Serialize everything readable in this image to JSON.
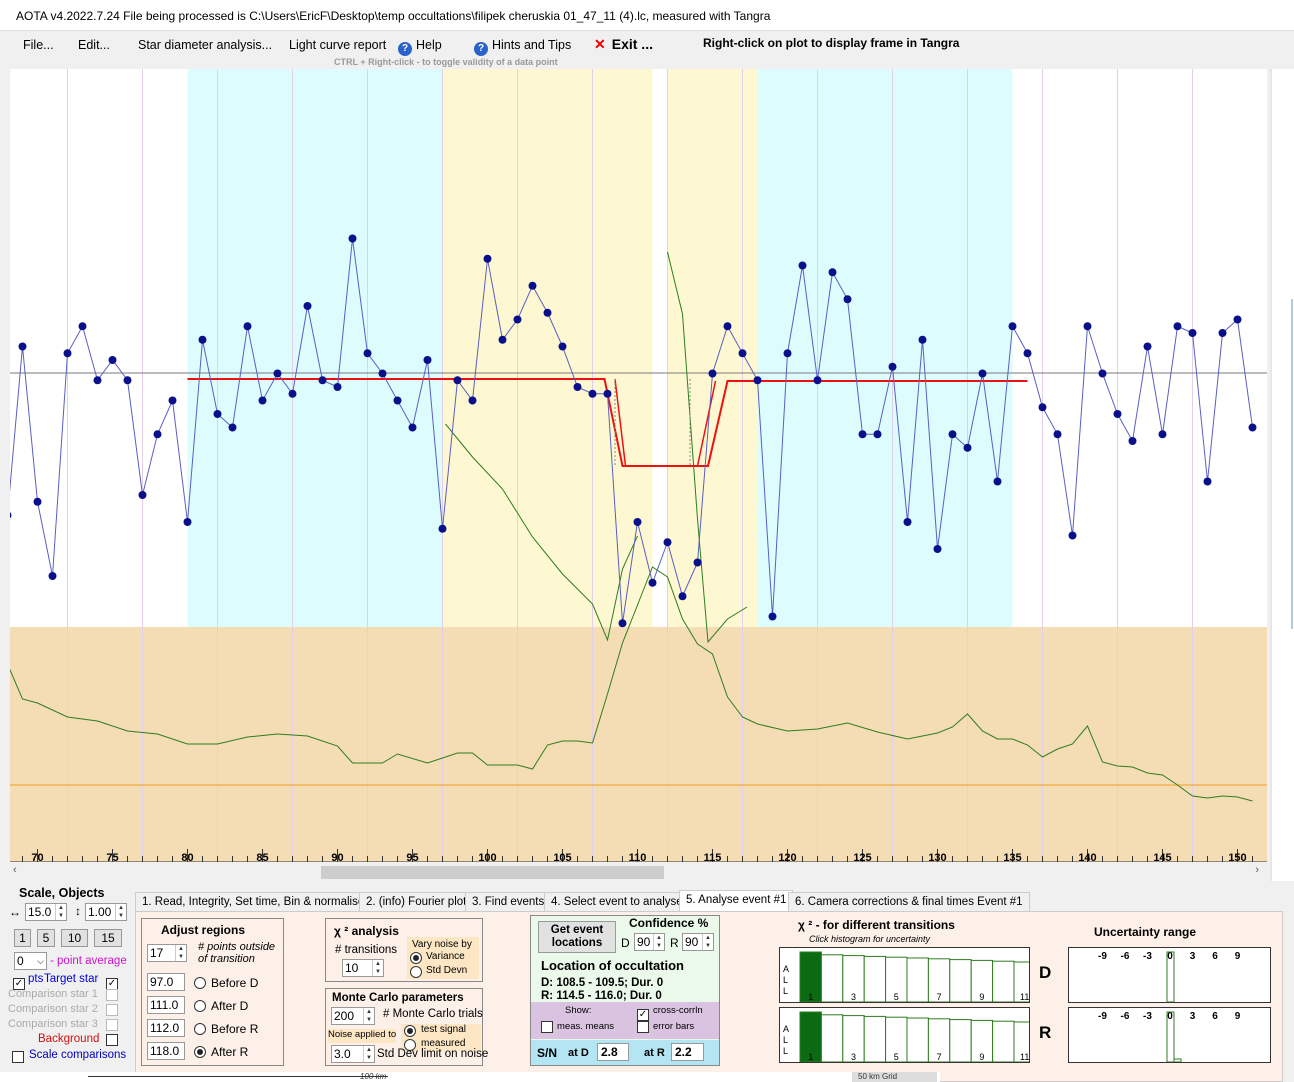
{
  "window": {
    "title": "AOTA v4.2022.7.24    File being processed is C:\\Users\\EricF\\Desktop\\temp occultations\\filipek cheruskia 01_47_11 (4).lc, measured with Tangra"
  },
  "menu": {
    "file": "File...",
    "edit": "Edit...",
    "star_diameter": "Star diameter analysis...",
    "light_curve_report": "Light curve report",
    "help": "Help",
    "hints": "Hints and Tips",
    "exit": "Exit ...",
    "right_click_hint": "Right-click on plot to display frame in Tangra",
    "ctrl_hint": "CTRL + Right-click  -  to toggle validity of a data point"
  },
  "plot": {
    "x_ticks": [
      "70",
      "75",
      "80",
      "85",
      "90",
      "95",
      "100",
      "105",
      "110",
      "115",
      "120",
      "125",
      "130",
      "135",
      "140",
      "145",
      "150"
    ],
    "colors": {
      "baseline_region": "#ddfcfe",
      "transition_region": "#fdf8d2",
      "chi_region": "#f4ddb4",
      "data_line": "#5a5fc0",
      "data_point": "#0a0f8a",
      "model_line": "#ee1111",
      "chi_line": "#2e7d1f",
      "orange_line": "#f2a020"
    },
    "series": [
      {
        "x": 68,
        "y": 0.45
      },
      {
        "x": 69,
        "y": 0.7
      },
      {
        "x": 70,
        "y": 0.47
      },
      {
        "x": 71,
        "y": 0.36
      },
      {
        "x": 72,
        "y": 0.69
      },
      {
        "x": 73,
        "y": 0.73
      },
      {
        "x": 74,
        "y": 0.65
      },
      {
        "x": 75,
        "y": 0.68
      },
      {
        "x": 76,
        "y": 0.65
      },
      {
        "x": 77,
        "y": 0.48
      },
      {
        "x": 78,
        "y": 0.57
      },
      {
        "x": 79,
        "y": 0.62
      },
      {
        "x": 80,
        "y": 0.44
      },
      {
        "x": 81,
        "y": 0.71
      },
      {
        "x": 82,
        "y": 0.6
      },
      {
        "x": 83,
        "y": 0.58
      },
      {
        "x": 84,
        "y": 0.73
      },
      {
        "x": 85,
        "y": 0.62
      },
      {
        "x": 86,
        "y": 0.66
      },
      {
        "x": 87,
        "y": 0.63
      },
      {
        "x": 88,
        "y": 0.76
      },
      {
        "x": 89,
        "y": 0.65
      },
      {
        "x": 90,
        "y": 0.64
      },
      {
        "x": 91,
        "y": 0.86
      },
      {
        "x": 92,
        "y": 0.69
      },
      {
        "x": 93,
        "y": 0.66
      },
      {
        "x": 94,
        "y": 0.62
      },
      {
        "x": 95,
        "y": 0.58
      },
      {
        "x": 96,
        "y": 0.68
      },
      {
        "x": 97,
        "y": 0.43
      },
      {
        "x": 98,
        "y": 0.65
      },
      {
        "x": 99,
        "y": 0.62
      },
      {
        "x": 100,
        "y": 0.83
      },
      {
        "x": 101,
        "y": 0.71
      },
      {
        "x": 102,
        "y": 0.74
      },
      {
        "x": 103,
        "y": 0.79
      },
      {
        "x": 104,
        "y": 0.75
      },
      {
        "x": 105,
        "y": 0.7
      },
      {
        "x": 106,
        "y": 0.64
      },
      {
        "x": 107,
        "y": 0.63
      },
      {
        "x": 108,
        "y": 0.63
      },
      {
        "x": 109,
        "y": 0.29
      },
      {
        "x": 110,
        "y": 0.44
      },
      {
        "x": 111,
        "y": 0.35
      },
      {
        "x": 112,
        "y": 0.41
      },
      {
        "x": 113,
        "y": 0.33
      },
      {
        "x": 114,
        "y": 0.38
      },
      {
        "x": 115,
        "y": 0.66
      },
      {
        "x": 116,
        "y": 0.73
      },
      {
        "x": 117,
        "y": 0.69
      },
      {
        "x": 118,
        "y": 0.65
      },
      {
        "x": 119,
        "y": 0.3
      },
      {
        "x": 120,
        "y": 0.69
      },
      {
        "x": 121,
        "y": 0.82
      },
      {
        "x": 122,
        "y": 0.65
      },
      {
        "x": 123,
        "y": 0.81
      },
      {
        "x": 124,
        "y": 0.77
      },
      {
        "x": 125,
        "y": 0.57
      },
      {
        "x": 126,
        "y": 0.57
      },
      {
        "x": 127,
        "y": 0.67
      },
      {
        "x": 128,
        "y": 0.44
      },
      {
        "x": 129,
        "y": 0.71
      },
      {
        "x": 130,
        "y": 0.4
      },
      {
        "x": 131,
        "y": 0.57
      },
      {
        "x": 132,
        "y": 0.55
      },
      {
        "x": 133,
        "y": 0.66
      },
      {
        "x": 134,
        "y": 0.5
      },
      {
        "x": 135,
        "y": 0.73
      },
      {
        "x": 136,
        "y": 0.69
      },
      {
        "x": 137,
        "y": 0.61
      },
      {
        "x": 138,
        "y": 0.57
      },
      {
        "x": 139,
        "y": 0.42
      },
      {
        "x": 140,
        "y": 0.73
      },
      {
        "x": 141,
        "y": 0.66
      },
      {
        "x": 142,
        "y": 0.6
      },
      {
        "x": 143,
        "y": 0.56
      },
      {
        "x": 144,
        "y": 0.7
      },
      {
        "x": 145,
        "y": 0.57
      },
      {
        "x": 146,
        "y": 0.73
      },
      {
        "x": 147,
        "y": 0.72
      },
      {
        "x": 148,
        "y": 0.5
      },
      {
        "x": 149,
        "y": 0.72
      },
      {
        "x": 150,
        "y": 0.74
      },
      {
        "x": 151,
        "y": 0.58
      }
    ]
  },
  "scale": {
    "title": "Scale,  Objects",
    "h_value": "15.0",
    "v_value": "1.00",
    "buttons": [
      "1",
      "5",
      "10",
      "15"
    ],
    "point_avg_value": "0",
    "point_avg_label": "- point average",
    "pts_label": "pts",
    "target_star": "Target star",
    "comp1": "Comparison star 1",
    "comp2": "Comparison star 2",
    "comp3": "Comparison star 3",
    "background": "Background",
    "scale_comparisons": "Scale comparisons"
  },
  "tabs": [
    "1.  Read, Integrity, Set time, Bin & normalise",
    "2. (info)  Fourier plot",
    "3. Find events",
    "4. Select event to analyse",
    "5. Analyse event #1",
    "6. Camera corrections & final times Event #1"
  ],
  "adjust": {
    "title": "Adjust regions",
    "points_value": "17",
    "points_label": "# points outside of transition",
    "before_d_value": "97.0",
    "before_d": "Before D",
    "after_d_value": "111.0",
    "after_d": "After D",
    "before_r_value": "112.0",
    "before_r": "Before R",
    "after_r_value": "118.0",
    "after_r": "After R"
  },
  "chi": {
    "title": "χ ² analysis",
    "transitions_label": "# transitions",
    "transitions_value": "10",
    "vary_noise": "Vary noise by",
    "variance": "Variance",
    "std_devn": "Std Devn"
  },
  "monte": {
    "title": "Monte Carlo parameters",
    "trials_value": "200",
    "trials_label": "# Monte Carlo trials",
    "noise_applied": "Noise applied to",
    "test_signal": "test signal",
    "measured": "measured",
    "std_value": "3.0",
    "std_label": "Std Dev limit on noise"
  },
  "event": {
    "get_button": "Get event locations",
    "confidence_title": "Confidence %",
    "d_label": "D",
    "d_value": "90",
    "r_label": "R",
    "r_value": "90",
    "location_title": "Location of occultation",
    "d_line": "D: 108.5 - 109.5; Dur. 0",
    "r_line": "R: 114.5 - 116.0; Dur. 0",
    "show": "Show:",
    "cross_corrln": "cross-corrln",
    "meas_means": "meas. means",
    "error_bars": "error bars",
    "sn_label": "S/N",
    "at_d": "at D",
    "at_d_value": "2.8",
    "at_r": "at R",
    "at_r_value": "2.2"
  },
  "chi_hist": {
    "title": "χ ² - for different transitions",
    "subtitle": "Click histogram for uncertainty",
    "all_label": "A L L",
    "labels": [
      "1",
      "3",
      "5",
      "7",
      "9",
      "11"
    ],
    "d_label": "D",
    "r_label": "R"
  },
  "uncertainty": {
    "title": "Uncertainty range",
    "ticks": [
      "-9",
      "-6",
      "-3",
      "0",
      "3",
      "6",
      "9"
    ]
  },
  "bottom": {
    "scale_100km": "100 km",
    "grid_50km": "50 km Grid"
  }
}
